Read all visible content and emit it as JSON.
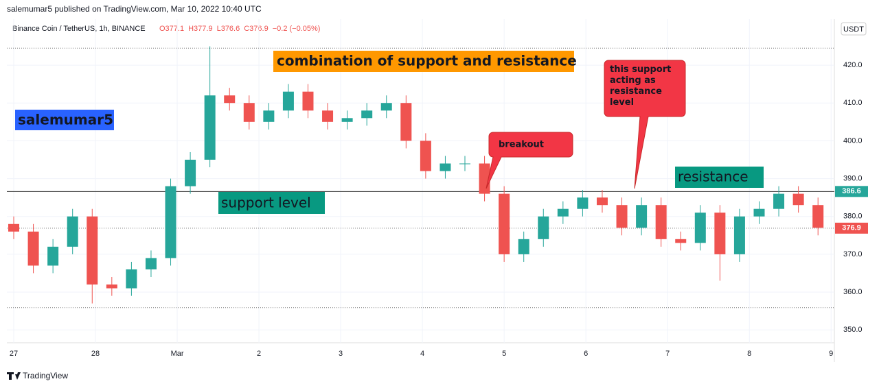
{
  "header": {
    "publisher": "salemumar5 published on TradingView.com, Mar 10, 2022 10:40 UTC",
    "symbol": "Binance Coin / TetherUS, 1h, BINANCE",
    "ohlc": [
      "O377.1",
      "H377.9",
      "L376.6",
      "C376.9",
      "−0.2 (−0.05%)"
    ],
    "currency": "USDT"
  },
  "footer": {
    "brand": "TradingView"
  },
  "chart_data": {
    "type": "candlestick",
    "up_color": "#26a69a",
    "down_color": "#ef5350",
    "grid": true,
    "x": [
      0,
      0.24,
      0.48,
      0.72,
      0.96,
      1.2,
      1.44,
      1.68,
      1.92,
      2.16,
      2.4,
      2.64,
      2.88,
      3.12,
      3.36,
      3.6,
      3.84,
      4.08,
      4.32,
      4.56,
      4.8,
      5.04,
      5.28,
      5.52,
      5.76,
      6.0,
      6.24,
      6.48,
      6.72,
      6.96,
      7.2,
      7.44,
      7.68,
      7.92,
      8.16,
      8.4,
      8.64,
      8.88,
      9.12,
      9.36,
      9.6,
      9.84
    ],
    "open": [
      378,
      376,
      367,
      372,
      380,
      362,
      361,
      366,
      369,
      388,
      395,
      412,
      410,
      405,
      408,
      413,
      408,
      405,
      406,
      408,
      410,
      400,
      392,
      394,
      394,
      386,
      370,
      374,
      380,
      382,
      385,
      383,
      377,
      383,
      374,
      373,
      381,
      370,
      380,
      382,
      386,
      383
    ],
    "high": [
      380,
      378,
      374,
      382,
      382,
      364,
      368,
      371,
      390,
      397,
      425,
      414,
      412,
      410,
      415,
      415,
      410,
      408,
      410,
      412,
      412,
      402,
      396,
      396,
      396,
      388,
      376,
      382,
      384,
      387,
      387,
      385,
      385,
      385,
      376,
      383,
      383,
      382,
      384,
      388,
      388,
      385
    ],
    "low": [
      374,
      365,
      365,
      370,
      357,
      359,
      359,
      364,
      367,
      386,
      393,
      408,
      403,
      403,
      406,
      406,
      403,
      403,
      404,
      406,
      398,
      390,
      390,
      392,
      384,
      368,
      368,
      372,
      378,
      380,
      381,
      375,
      375,
      372,
      371,
      371,
      363,
      368,
      378,
      380,
      381,
      375
    ],
    "close": [
      376,
      367,
      372,
      380,
      362,
      361,
      366,
      369,
      388,
      395,
      412,
      410,
      405,
      408,
      413,
      408,
      405,
      406,
      408,
      410,
      400,
      392,
      394,
      394,
      386,
      370,
      374,
      380,
      382,
      385,
      383,
      377,
      383,
      374,
      373,
      381,
      370,
      380,
      382,
      386,
      383,
      377
    ],
    "xlim": [
      -0.084,
      10.04
    ],
    "xticks": [
      {
        "value": 0,
        "label": "27"
      },
      {
        "value": 1,
        "label": "28"
      },
      {
        "value": 2,
        "label": "Mar"
      },
      {
        "value": 3,
        "label": "2"
      },
      {
        "value": 4,
        "label": "3"
      },
      {
        "value": 5,
        "label": "4"
      },
      {
        "value": 6,
        "label": "5"
      },
      {
        "value": 7,
        "label": "6"
      },
      {
        "value": 8,
        "label": "7"
      },
      {
        "value": 9,
        "label": "8"
      },
      {
        "value": 10,
        "label": "9"
      }
    ],
    "ylim": [
      346.6,
      426.9
    ],
    "yticks": [
      {
        "value": 350,
        "label": "350.0"
      },
      {
        "value": 360,
        "label": "360.0"
      },
      {
        "value": 370,
        "label": "370.0"
      },
      {
        "value": 380,
        "label": "380.0"
      },
      {
        "value": 390,
        "label": "390.0"
      },
      {
        "value": 400,
        "label": "400.0"
      },
      {
        "value": 410,
        "label": "410.0"
      },
      {
        "value": 420,
        "label": "420.0"
      }
    ],
    "levels": [
      {
        "value": 424.5,
        "style": "dotted"
      },
      {
        "value": 386.6,
        "style": "solid",
        "tag_color": "#26a69a"
      },
      {
        "value": 376.9,
        "style": "dotted",
        "tag_color": "#ef5350"
      },
      {
        "value": 355.9,
        "style": "dotted"
      }
    ],
    "annotations": [
      "salemumar5",
      "combination of support and resistance",
      "support level",
      "breakout",
      "this support acting as resistance level",
      "resistance"
    ]
  }
}
